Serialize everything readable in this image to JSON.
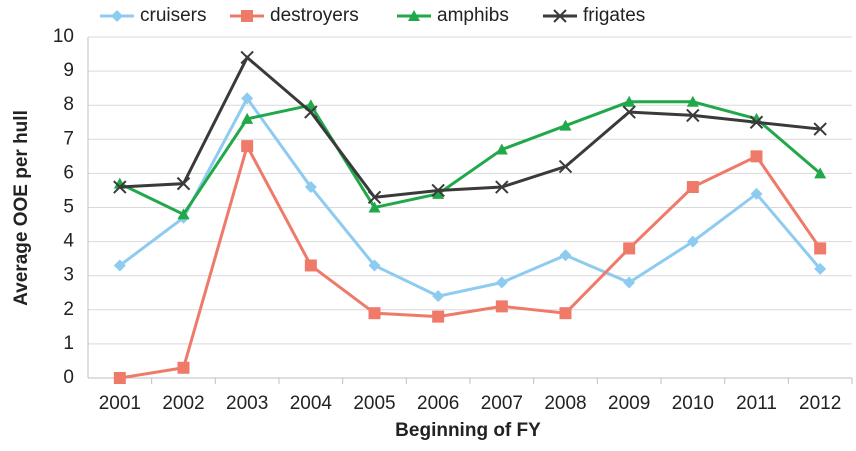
{
  "chart_data": {
    "type": "line",
    "x_label": "Beginning of FY",
    "y_label": "Average OOE per hull",
    "categories": [
      "2001",
      "2002",
      "2003",
      "2004",
      "2005",
      "2006",
      "2007",
      "2008",
      "2009",
      "2010",
      "2011",
      "2012"
    ],
    "series": [
      {
        "name": "cruisers",
        "color": "#8ecbf0",
        "marker": "diamond",
        "values": [
          3.3,
          4.7,
          8.2,
          5.6,
          3.3,
          2.4,
          2.8,
          3.6,
          2.8,
          4.0,
          5.4,
          3.2
        ]
      },
      {
        "name": "destroyers",
        "color": "#ef7a6a",
        "marker": "square",
        "values": [
          0,
          0.3,
          6.8,
          3.3,
          1.9,
          1.8,
          2.1,
          1.9,
          3.8,
          5.6,
          6.5,
          3.8
        ]
      },
      {
        "name": "amphibs",
        "color": "#21a84a",
        "marker": "triangle",
        "values": [
          5.7,
          4.8,
          7.6,
          8.0,
          5.0,
          5.4,
          6.7,
          7.4,
          8.1,
          8.1,
          7.6,
          6.0
        ]
      },
      {
        "name": "frigates",
        "color": "#3a3a3a",
        "marker": "x",
        "values": [
          5.6,
          5.7,
          9.4,
          7.8,
          5.3,
          5.5,
          5.6,
          6.2,
          7.8,
          7.7,
          7.5,
          7.3
        ]
      }
    ],
    "ylim": [
      0,
      10
    ],
    "yticks": [
      0,
      1,
      2,
      3,
      4,
      5,
      6,
      7,
      8,
      9,
      10
    ],
    "grid": true,
    "legend": "top"
  }
}
